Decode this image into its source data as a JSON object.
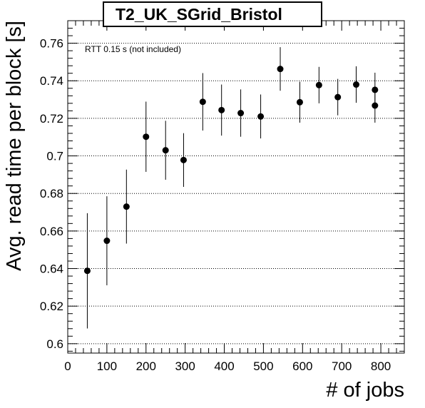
{
  "chart_data": {
    "type": "scatter",
    "title": "T2_UK_SGrid_Bristol",
    "xlabel": "# of jobs",
    "ylabel": "Avg. read time per block [s]",
    "annotation": "RTT 0.15 s (not included)",
    "xlim": [
      0,
      860
    ],
    "ylim": [
      0.595,
      0.772
    ],
    "x_ticks": [
      0,
      100,
      200,
      300,
      400,
      500,
      600,
      700,
      800
    ],
    "y_ticks": [
      0.6,
      0.62,
      0.64,
      0.66,
      0.68,
      0.7,
      0.72,
      0.74,
      0.76
    ],
    "y_tick_labels": [
      "0.6",
      "0.62",
      "0.64",
      "0.66",
      "0.68",
      "0.7",
      "0.72",
      "0.74",
      "0.76"
    ],
    "grid": "horizontal",
    "series": [
      {
        "x": [
          50,
          100,
          150,
          200,
          250,
          296,
          345,
          393,
          442,
          493,
          543,
          593,
          642,
          690,
          737,
          785,
          785
        ],
        "y": [
          0.6388,
          0.6548,
          0.673,
          0.7102,
          0.703,
          0.6978,
          0.7288,
          0.7244,
          0.7228,
          0.721,
          0.7463,
          0.7286,
          0.7377,
          0.7313,
          0.738,
          0.7352,
          0.7268
        ],
        "y_err": [
          0.0307,
          0.0237,
          0.0197,
          0.0187,
          0.0157,
          0.0143,
          0.0153,
          0.0136,
          0.0126,
          0.0117,
          0.0116,
          0.0109,
          0.0097,
          0.0097,
          0.0097,
          0.0091,
          0.0091
        ]
      }
    ]
  }
}
